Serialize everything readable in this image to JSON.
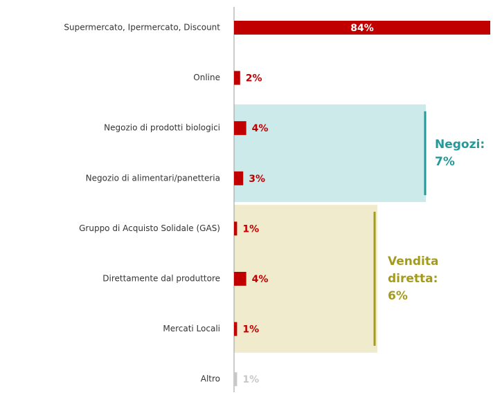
{
  "chart_data": {
    "type": "bar",
    "orientation": "horizontal",
    "categories": [
      "Supermercato, Ipermercato, Discount",
      "Online",
      "Negozio di prodotti biologici",
      "Negozio di alimentari/panetteria",
      "Gruppo di Acquisto Solidale (GAS)",
      "Direttamente dal produttore",
      "Mercati Locali",
      "Altro"
    ],
    "values": [
      84,
      2,
      4,
      3,
      1,
      4,
      1,
      1
    ],
    "value_labels": [
      "84%",
      "2%",
      "4%",
      "3%",
      "1%",
      "4%",
      "1%",
      "1%"
    ],
    "colors": [
      "#c00000",
      "#c00000",
      "#c00000",
      "#c00000",
      "#c00000",
      "#c00000",
      "#c00000",
      "#c8c8c8"
    ],
    "groups": [
      {
        "label": [
          "Negozi:",
          "7%"
        ],
        "members": [
          "Negozio di prodotti biologici",
          "Negozio di alimentari/panetteria"
        ],
        "fill": "#cdeaea",
        "color": "#23999a"
      },
      {
        "label": [
          "Vendita",
          "diretta:",
          "6%"
        ],
        "members": [
          "Gruppo di Acquisto Solidale (GAS)",
          "Direttamente dal produttore",
          "Mercati Locali"
        ],
        "fill": "#efebcc",
        "color": "#a39b1c"
      }
    ]
  }
}
